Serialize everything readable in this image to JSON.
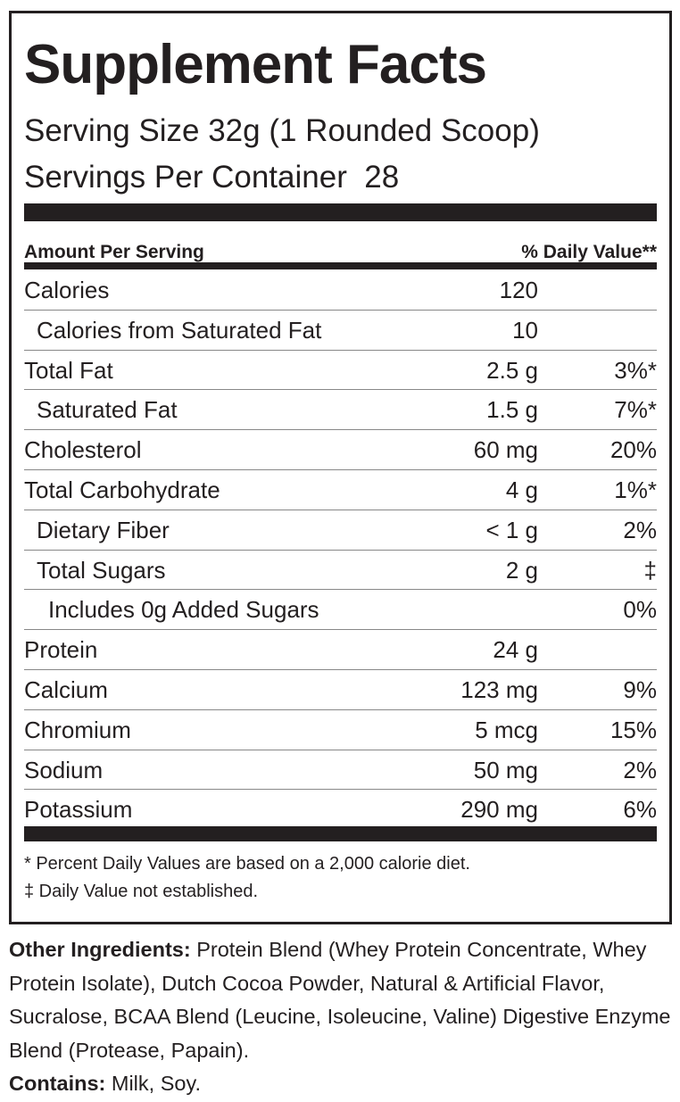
{
  "title": "Supplement Facts",
  "serving_size": "Serving Size 32g (1 Rounded Scoop)",
  "servings_per_container": "Servings Per Container  28",
  "header": {
    "amount": "Amount Per Serving",
    "dv": "% Daily Value**"
  },
  "rows": [
    {
      "name": "Calories",
      "amount": "120"
    },
    {
      "name": "Calories from Saturated Fat",
      "amount": "10"
    },
    {
      "name": "Total Fat",
      "amount": "2.5 g",
      "dv": "3%*"
    },
    {
      "name": "Saturated Fat",
      "amount": "1.5 g",
      "dv": "7%*"
    },
    {
      "name": "Cholesterol",
      "amount": "60 mg",
      "dv": "20%"
    },
    {
      "name": "Total Carbohydrate",
      "amount": "4 g",
      "dv": "1%*"
    },
    {
      "name": "Dietary Fiber",
      "amount": "< 1 g",
      "dv": "2%"
    },
    {
      "name": "Total Sugars",
      "amount": "2 g",
      "dv": "‡"
    },
    {
      "name": "Includes 0g Added Sugars",
      "dv": "0%"
    },
    {
      "name": "Protein",
      "amount": "24 g"
    },
    {
      "name": "Calcium",
      "amount": "123 mg",
      "dv": "9%"
    },
    {
      "name": "Chromium",
      "amount": "5 mcg",
      "dv": "15%"
    },
    {
      "name": "Sodium",
      "amount": "50 mg",
      "dv": "2%"
    },
    {
      "name": "Potassium",
      "amount": "290 mg",
      "dv": "6%"
    }
  ],
  "footnotes": [
    "* Percent Daily Values are based on a 2,000 calorie diet.",
    "‡ Daily Value not established."
  ],
  "other_ingredients": {
    "label": "Other Ingredients:",
    "text": " Protein Blend (Whey Protein Concentrate, Whey Protein Isolate), Dutch Cocoa Powder, Natural & Artificial Flavor, Sucralose, BCAA Blend (Leucine, Isoleucine, Valine) Digestive Enzyme Blend (Protease, Papain)."
  },
  "contains": {
    "label": "Contains:",
    "text": " Milk, Soy."
  }
}
